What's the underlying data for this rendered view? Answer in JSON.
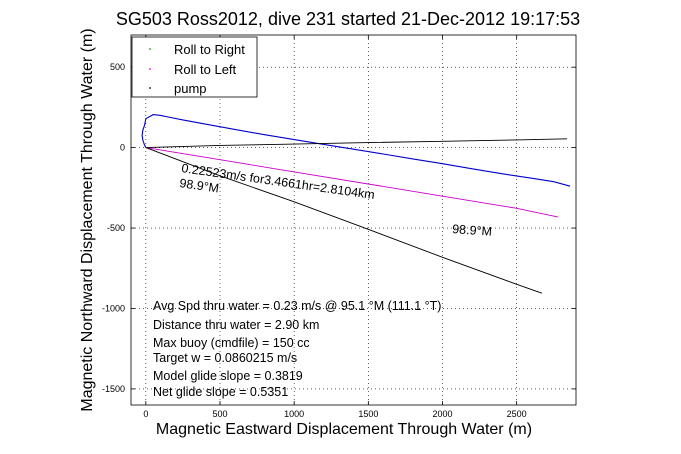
{
  "chart_data": {
    "type": "line",
    "title": "SG503 Ross2012, dive 231 started 21-Dec-2012 19:17:53",
    "xlabel": "Magnetic Eastward Displacement Through Water (m)",
    "ylabel": "Magnetic Northward Displacement Through Water (m)",
    "xlim": [
      -100,
      2900
    ],
    "ylim": [
      -1600,
      700
    ],
    "xticks": [
      0,
      500,
      1000,
      1500,
      2000,
      2500
    ],
    "xtick_labels": [
      "0",
      "500",
      "1000",
      "1500",
      "2000",
      "2500"
    ],
    "yticks": [
      500,
      0,
      -500,
      -1000,
      -1500
    ],
    "ytick_labels": [
      "500",
      "0",
      "-500",
      "-1000",
      "-1500"
    ],
    "grid": true,
    "legend": {
      "placement": "top-left",
      "entries": [
        {
          "label": "Roll to Right",
          "color": "#00aa00"
        },
        {
          "label": "Roll to Left",
          "color": "#ff00ff"
        },
        {
          "label": "pump",
          "color": "#000000"
        }
      ]
    },
    "series": [
      {
        "name": "track (blue)",
        "color": "#0000cc",
        "x": [
          0,
          -10,
          -20,
          -25,
          -20,
          -8,
          0,
          50,
          100,
          150,
          250,
          400,
          600,
          800,
          1000,
          1200,
          1400,
          1600,
          1800,
          2000,
          2200,
          2400,
          2600,
          2750,
          2860
        ],
        "y": [
          0,
          20,
          45,
          75,
          110,
          140,
          180,
          205,
          200,
          190,
          172,
          146,
          113,
          80,
          50,
          20,
          -10,
          -40,
          -70,
          -100,
          -132,
          -162,
          -190,
          -212,
          -240
        ]
      },
      {
        "name": "current drift (black, top)",
        "color": "#000000",
        "x": [
          0,
          500,
          1000,
          1500,
          2000,
          2500,
          2840
        ],
        "y": [
          0,
          14,
          22,
          31,
          39,
          48,
          55
        ]
      },
      {
        "name": "98.9°M heading (magenta)",
        "color": "#cc00cc",
        "x": [
          0,
          500,
          1000,
          1500,
          2000,
          2500,
          2780
        ],
        "y": [
          0,
          -75,
          -151,
          -226,
          -302,
          -377,
          -432
        ]
      },
      {
        "name": "98.9°M heading (steep black)",
        "color": "#000000",
        "x": [
          0,
          500,
          1000,
          1500,
          2000,
          2500,
          2670
        ],
        "y": [
          0,
          -175,
          -337,
          -508,
          -682,
          -850,
          -905
        ]
      }
    ],
    "annotations": [
      {
        "text": "0.22523m/s for3.4661hr=2.8104km",
        "x": 260,
        "y": -20,
        "rotate": 8
      },
      {
        "text": "98.9°M",
        "x": 250,
        "y": -130
      },
      {
        "text": "98.9°M",
        "x": 2060,
        "y": -400
      }
    ],
    "stats": [
      "Avg Spd thru water =  0.23 m/s @  95.1    °M (111.1 °T)",
      "Distance thru water =  2.90 km",
      "Max buoy (cmdfile) = 150 cc",
      "Target w = 0.0860215 m/s",
      "Model glide slope = 0.3819",
      "Net glide slope = 0.5351"
    ]
  }
}
